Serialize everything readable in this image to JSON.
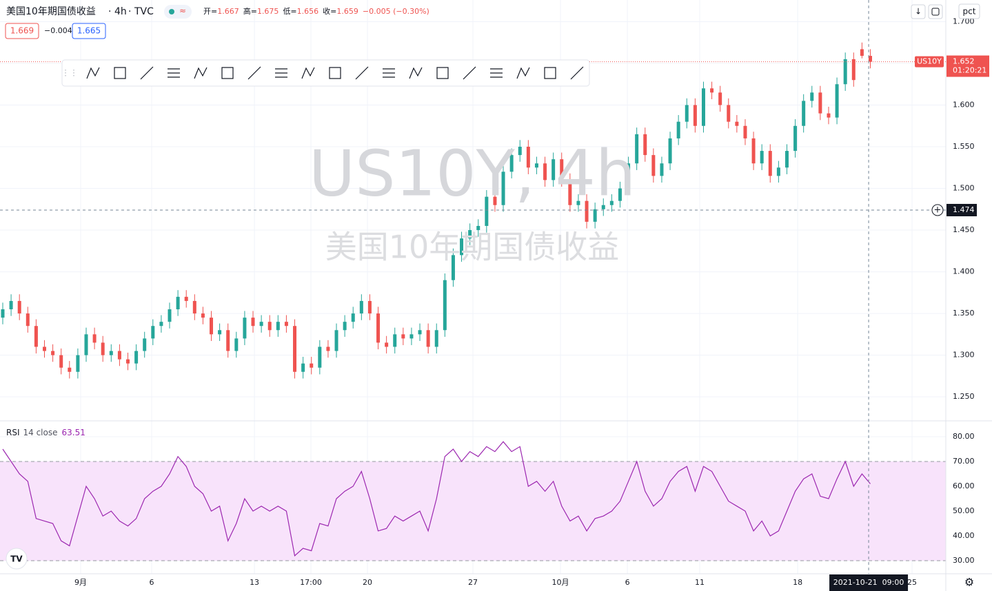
{
  "chart_data": [
    {
      "type": "candlestick",
      "title": "美国10年期国债收益",
      "interval": "4h",
      "source": "TVC",
      "legend": [
        {
          "label": "开=",
          "value": 1.667
        },
        {
          "label": "高=",
          "value": 1.675
        },
        {
          "label": "低=",
          "value": 1.656
        },
        {
          "label": "收=",
          "value": 1.659
        }
      ],
      "change": "−0.005 (−0.30%)",
      "bid": 1.669,
      "spread": "−0.004",
      "ask": 1.665,
      "watermark": "US10Y, 4h",
      "watermark_name": "美国10年期国债收益",
      "symbol": "US10Y",
      "last_price": 1.652,
      "countdown": "01:20:21",
      "crosshair_price": 1.474,
      "crosshair_index": 103.8,
      "crosshair_time": "2021-10-21  09:00",
      "scale_button": "pct",
      "up_color": "#26a69a",
      "down_color": "#ef5350",
      "xlim": [
        -0.33,
        113.05
      ],
      "ylim": [
        1.222,
        1.726
      ],
      "xticks": [
        {
          "value": 9.34,
          "label": "9月"
        },
        {
          "value": 17.85,
          "label": "6"
        },
        {
          "value": 30.17,
          "label": "13"
        },
        {
          "value": 36.94,
          "label": "17:00"
        },
        {
          "value": 43.72,
          "label": "20"
        },
        {
          "value": 56.36,
          "label": "27"
        },
        {
          "value": 66.86,
          "label": "10月"
        },
        {
          "value": 74.88,
          "label": "6"
        },
        {
          "value": 83.55,
          "label": "11"
        },
        {
          "value": 95.29,
          "label": "18"
        },
        {
          "value": 109.0,
          "label": "25"
        }
      ],
      "yticks": [
        {
          "value": 1.25,
          "label": "1.250"
        },
        {
          "value": 1.3,
          "label": "1.300"
        },
        {
          "value": 1.35,
          "label": "1.350"
        },
        {
          "value": 1.4,
          "label": "1.400"
        },
        {
          "value": 1.45,
          "label": "1.450"
        },
        {
          "value": 1.5,
          "label": "1.500"
        },
        {
          "value": 1.55,
          "label": "1.550"
        },
        {
          "value": 1.6,
          "label": "1.600"
        },
        {
          "value": 1.65,
          "label": "1.650"
        },
        {
          "value": 1.7,
          "label": "1.700"
        }
      ],
      "open": [
        1.345,
        1.355,
        1.365,
        1.35,
        1.335,
        1.31,
        1.305,
        1.3,
        1.285,
        1.28,
        1.3,
        1.325,
        1.315,
        1.3,
        1.305,
        1.295,
        1.29,
        1.305,
        1.32,
        1.335,
        1.34,
        1.355,
        1.37,
        1.365,
        1.35,
        1.345,
        1.325,
        1.33,
        1.305,
        1.32,
        1.345,
        1.335,
        1.34,
        1.33,
        1.34,
        1.335,
        1.28,
        1.29,
        1.285,
        1.31,
        1.305,
        1.33,
        1.34,
        1.35,
        1.365,
        1.35,
        1.315,
        1.31,
        1.325,
        1.32,
        1.325,
        1.33,
        1.31,
        1.33,
        1.39,
        1.42,
        1.44,
        1.45,
        1.455,
        1.49,
        1.48,
        1.52,
        1.54,
        1.55,
        1.525,
        1.53,
        1.51,
        1.535,
        1.51,
        1.48,
        1.485,
        1.46,
        1.475,
        1.48,
        1.485,
        1.5,
        1.53,
        1.565,
        1.54,
        1.515,
        1.53,
        1.56,
        1.58,
        1.6,
        1.575,
        1.62,
        1.615,
        1.6,
        1.58,
        1.575,
        1.56,
        1.53,
        1.545,
        1.515,
        1.525,
        1.545,
        1.575,
        1.605,
        1.615,
        1.59,
        1.585,
        1.625,
        1.655,
        1.667,
        1.659
      ],
      "high": [
        1.363,
        1.373,
        1.373,
        1.358,
        1.343,
        1.318,
        1.313,
        1.308,
        1.293,
        1.308,
        1.333,
        1.333,
        1.323,
        1.313,
        1.313,
        1.303,
        1.313,
        1.328,
        1.343,
        1.348,
        1.363,
        1.378,
        1.378,
        1.373,
        1.358,
        1.353,
        1.338,
        1.338,
        1.328,
        1.353,
        1.353,
        1.348,
        1.348,
        1.348,
        1.348,
        1.343,
        1.298,
        1.298,
        1.318,
        1.318,
        1.338,
        1.348,
        1.358,
        1.373,
        1.373,
        1.358,
        1.323,
        1.333,
        1.333,
        1.333,
        1.338,
        1.338,
        1.338,
        1.398,
        1.428,
        1.448,
        1.458,
        1.463,
        1.498,
        1.498,
        1.528,
        1.548,
        1.558,
        1.558,
        1.538,
        1.538,
        1.543,
        1.543,
        1.518,
        1.493,
        1.493,
        1.483,
        1.488,
        1.493,
        1.508,
        1.538,
        1.573,
        1.573,
        1.548,
        1.538,
        1.568,
        1.588,
        1.608,
        1.608,
        1.628,
        1.628,
        1.623,
        1.608,
        1.588,
        1.583,
        1.568,
        1.553,
        1.553,
        1.533,
        1.553,
        1.583,
        1.613,
        1.623,
        1.623,
        1.598,
        1.633,
        1.663,
        1.663,
        1.675,
        1.667
      ],
      "low": [
        1.337,
        1.347,
        1.342,
        1.327,
        1.302,
        1.297,
        1.292,
        1.277,
        1.272,
        1.272,
        1.292,
        1.307,
        1.292,
        1.292,
        1.287,
        1.282,
        1.282,
        1.297,
        1.312,
        1.327,
        1.332,
        1.347,
        1.357,
        1.342,
        1.337,
        1.317,
        1.317,
        1.297,
        1.297,
        1.312,
        1.327,
        1.327,
        1.322,
        1.322,
        1.327,
        1.272,
        1.272,
        1.277,
        1.277,
        1.297,
        1.297,
        1.322,
        1.332,
        1.342,
        1.342,
        1.307,
        1.302,
        1.302,
        1.312,
        1.312,
        1.317,
        1.302,
        1.302,
        1.322,
        1.382,
        1.412,
        1.432,
        1.442,
        1.447,
        1.472,
        1.472,
        1.512,
        1.532,
        1.517,
        1.517,
        1.502,
        1.502,
        1.502,
        1.472,
        1.472,
        1.452,
        1.452,
        1.467,
        1.472,
        1.477,
        1.492,
        1.522,
        1.532,
        1.507,
        1.507,
        1.522,
        1.552,
        1.572,
        1.567,
        1.567,
        1.607,
        1.592,
        1.572,
        1.567,
        1.552,
        1.522,
        1.522,
        1.507,
        1.507,
        1.517,
        1.537,
        1.567,
        1.597,
        1.582,
        1.577,
        1.577,
        1.617,
        1.622,
        1.656,
        1.644
      ],
      "close": [
        1.355,
        1.365,
        1.35,
        1.335,
        1.31,
        1.305,
        1.3,
        1.285,
        1.28,
        1.3,
        1.325,
        1.315,
        1.3,
        1.305,
        1.295,
        1.29,
        1.305,
        1.32,
        1.335,
        1.34,
        1.355,
        1.37,
        1.365,
        1.35,
        1.345,
        1.325,
        1.33,
        1.305,
        1.32,
        1.345,
        1.335,
        1.34,
        1.33,
        1.34,
        1.335,
        1.28,
        1.29,
        1.285,
        1.31,
        1.305,
        1.33,
        1.34,
        1.35,
        1.365,
        1.35,
        1.315,
        1.31,
        1.325,
        1.32,
        1.325,
        1.33,
        1.31,
        1.33,
        1.39,
        1.42,
        1.44,
        1.45,
        1.455,
        1.49,
        1.48,
        1.52,
        1.54,
        1.55,
        1.525,
        1.53,
        1.51,
        1.535,
        1.51,
        1.48,
        1.485,
        1.46,
        1.475,
        1.48,
        1.485,
        1.5,
        1.53,
        1.565,
        1.54,
        1.515,
        1.53,
        1.56,
        1.58,
        1.6,
        1.575,
        1.62,
        1.615,
        1.6,
        1.58,
        1.575,
        1.56,
        1.53,
        1.545,
        1.515,
        1.525,
        1.545,
        1.575,
        1.605,
        1.615,
        1.59,
        1.585,
        1.625,
        1.655,
        1.63,
        1.659,
        1.652
      ]
    },
    {
      "type": "line",
      "name": "RSI",
      "params": "14 close",
      "current": 63.51,
      "color": "#9c27b0",
      "band": [
        30,
        70
      ],
      "band_color": "#f8e3fb",
      "ylim": [
        25,
        86.1
      ],
      "yticks": [
        {
          "value": 30,
          "label": "30.00"
        },
        {
          "value": 40,
          "label": "40.00"
        },
        {
          "value": 50,
          "label": "50.00"
        },
        {
          "value": 60,
          "label": "60.00"
        },
        {
          "value": 70,
          "label": "70.00"
        },
        {
          "value": 80,
          "label": "80.00"
        }
      ],
      "values": [
        75,
        70,
        65,
        62,
        47,
        46,
        45,
        38,
        36,
        48,
        60,
        55,
        48,
        50,
        46,
        44,
        47,
        55,
        58,
        60,
        65,
        72,
        68,
        60,
        57,
        50,
        52,
        38,
        45,
        55,
        50,
        52,
        50,
        52,
        50,
        32,
        35,
        34,
        45,
        44,
        55,
        58,
        60,
        66,
        55,
        42,
        43,
        48,
        46,
        48,
        50,
        42,
        55,
        72,
        75,
        70,
        74,
        72,
        76,
        74,
        78,
        74,
        76,
        60,
        62,
        58,
        62,
        52,
        46,
        48,
        42,
        47,
        48,
        50,
        54,
        62,
        70,
        58,
        52,
        55,
        62,
        66,
        68,
        58,
        68,
        66,
        60,
        54,
        52,
        50,
        42,
        46,
        40,
        42,
        50,
        58,
        63,
        65,
        56,
        55,
        63,
        70,
        60,
        65,
        61
      ]
    }
  ]
}
